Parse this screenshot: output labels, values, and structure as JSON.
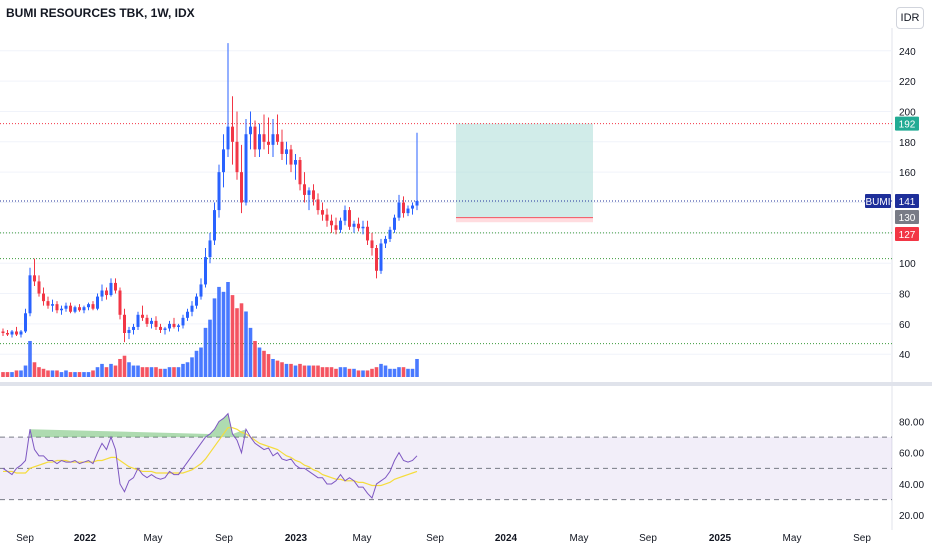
{
  "header": {
    "title": "BUMI RESOURCES TBK, 1W, IDX",
    "currency": "IDR"
  },
  "colors": {
    "up": "#2962ff",
    "down": "#f23645",
    "rsi": "#7e57c2",
    "rsi_ma": "#f5dc3c",
    "target_zone": "#b2dfdb",
    "stop_zone": "#ffcdd2",
    "target_line": "#f23645",
    "price_line": "#1e2f9a",
    "support_line": "#3a9a3a"
  },
  "chart_data": [
    {
      "type": "candlestick",
      "title": "BUMI RESOURCES TBK, 1W, IDX",
      "ylim": [
        25,
        255
      ],
      "yticks": [
        40,
        60,
        80,
        100,
        120,
        140,
        160,
        180,
        200,
        220,
        240
      ],
      "x_labels": [
        "Sep",
        "2022",
        "May",
        "Sep",
        "2023",
        "May",
        "Sep",
        "2024",
        "May",
        "Sep",
        "2025",
        "May",
        "Sep"
      ],
      "candles": [
        {
          "o": 55,
          "h": 57,
          "l": 52,
          "c": 54
        },
        {
          "o": 54,
          "h": 56,
          "l": 52,
          "c": 53
        },
        {
          "o": 53,
          "h": 56,
          "l": 51,
          "c": 55
        },
        {
          "o": 55,
          "h": 58,
          "l": 52,
          "c": 53
        },
        {
          "o": 53,
          "h": 56,
          "l": 51,
          "c": 55
        },
        {
          "o": 55,
          "h": 70,
          "l": 54,
          "c": 67
        },
        {
          "o": 67,
          "h": 97,
          "l": 65,
          "c": 92
        },
        {
          "o": 92,
          "h": 103,
          "l": 85,
          "c": 88
        },
        {
          "o": 88,
          "h": 92,
          "l": 78,
          "c": 80
        },
        {
          "o": 80,
          "h": 84,
          "l": 72,
          "c": 75
        },
        {
          "o": 75,
          "h": 78,
          "l": 70,
          "c": 72
        },
        {
          "o": 72,
          "h": 76,
          "l": 68,
          "c": 73
        },
        {
          "o": 73,
          "h": 75,
          "l": 67,
          "c": 69
        },
        {
          "o": 69,
          "h": 72,
          "l": 66,
          "c": 70
        },
        {
          "o": 70,
          "h": 74,
          "l": 68,
          "c": 72
        },
        {
          "o": 72,
          "h": 74,
          "l": 67,
          "c": 68
        },
        {
          "o": 68,
          "h": 72,
          "l": 67,
          "c": 71
        },
        {
          "o": 71,
          "h": 73,
          "l": 68,
          "c": 69
        },
        {
          "o": 69,
          "h": 72,
          "l": 67,
          "c": 71
        },
        {
          "o": 71,
          "h": 74,
          "l": 69,
          "c": 73
        },
        {
          "o": 73,
          "h": 75,
          "l": 69,
          "c": 70
        },
        {
          "o": 70,
          "h": 80,
          "l": 69,
          "c": 78
        },
        {
          "o": 78,
          "h": 86,
          "l": 75,
          "c": 82
        },
        {
          "o": 82,
          "h": 84,
          "l": 76,
          "c": 79
        },
        {
          "o": 79,
          "h": 90,
          "l": 78,
          "c": 87
        },
        {
          "o": 87,
          "h": 90,
          "l": 80,
          "c": 82
        },
        {
          "o": 82,
          "h": 84,
          "l": 63,
          "c": 66
        },
        {
          "o": 66,
          "h": 70,
          "l": 48,
          "c": 54
        },
        {
          "o": 54,
          "h": 58,
          "l": 50,
          "c": 56
        },
        {
          "o": 56,
          "h": 60,
          "l": 53,
          "c": 58
        },
        {
          "o": 58,
          "h": 68,
          "l": 56,
          "c": 66
        },
        {
          "o": 66,
          "h": 72,
          "l": 62,
          "c": 64
        },
        {
          "o": 64,
          "h": 66,
          "l": 58,
          "c": 60
        },
        {
          "o": 60,
          "h": 64,
          "l": 57,
          "c": 62
        },
        {
          "o": 62,
          "h": 65,
          "l": 56,
          "c": 58
        },
        {
          "o": 58,
          "h": 60,
          "l": 54,
          "c": 56
        },
        {
          "o": 56,
          "h": 58,
          "l": 53,
          "c": 57
        },
        {
          "o": 57,
          "h": 62,
          "l": 55,
          "c": 60
        },
        {
          "o": 60,
          "h": 64,
          "l": 57,
          "c": 58
        },
        {
          "o": 58,
          "h": 60,
          "l": 55,
          "c": 59
        },
        {
          "o": 59,
          "h": 66,
          "l": 57,
          "c": 64
        },
        {
          "o": 64,
          "h": 70,
          "l": 62,
          "c": 68
        },
        {
          "o": 68,
          "h": 75,
          "l": 65,
          "c": 72
        },
        {
          "o": 72,
          "h": 80,
          "l": 70,
          "c": 78
        },
        {
          "o": 78,
          "h": 90,
          "l": 76,
          "c": 86
        },
        {
          "o": 86,
          "h": 110,
          "l": 84,
          "c": 104
        },
        {
          "o": 104,
          "h": 120,
          "l": 100,
          "c": 115
        },
        {
          "o": 115,
          "h": 140,
          "l": 112,
          "c": 135
        },
        {
          "o": 135,
          "h": 165,
          "l": 130,
          "c": 160
        },
        {
          "o": 160,
          "h": 185,
          "l": 150,
          "c": 175
        },
        {
          "o": 175,
          "h": 245,
          "l": 170,
          "c": 190
        },
        {
          "o": 190,
          "h": 210,
          "l": 165,
          "c": 180
        },
        {
          "o": 180,
          "h": 200,
          "l": 155,
          "c": 160
        },
        {
          "o": 160,
          "h": 178,
          "l": 133,
          "c": 140
        },
        {
          "o": 140,
          "h": 195,
          "l": 138,
          "c": 185
        },
        {
          "o": 185,
          "h": 200,
          "l": 175,
          "c": 190
        },
        {
          "o": 190,
          "h": 194,
          "l": 170,
          "c": 175
        },
        {
          "o": 175,
          "h": 192,
          "l": 170,
          "c": 185
        },
        {
          "o": 185,
          "h": 198,
          "l": 175,
          "c": 180
        },
        {
          "o": 180,
          "h": 196,
          "l": 172,
          "c": 178
        },
        {
          "o": 178,
          "h": 195,
          "l": 170,
          "c": 185
        },
        {
          "o": 185,
          "h": 198,
          "l": 178,
          "c": 180
        },
        {
          "o": 180,
          "h": 188,
          "l": 168,
          "c": 172
        },
        {
          "o": 172,
          "h": 180,
          "l": 165,
          "c": 175
        },
        {
          "o": 175,
          "h": 178,
          "l": 160,
          "c": 165
        },
        {
          "o": 165,
          "h": 172,
          "l": 155,
          "c": 168
        },
        {
          "o": 168,
          "h": 170,
          "l": 148,
          "c": 152
        },
        {
          "o": 152,
          "h": 160,
          "l": 140,
          "c": 145
        },
        {
          "o": 145,
          "h": 150,
          "l": 135,
          "c": 148
        },
        {
          "o": 148,
          "h": 152,
          "l": 138,
          "c": 142
        },
        {
          "o": 142,
          "h": 146,
          "l": 132,
          "c": 135
        },
        {
          "o": 135,
          "h": 140,
          "l": 128,
          "c": 132
        },
        {
          "o": 132,
          "h": 136,
          "l": 124,
          "c": 128
        },
        {
          "o": 128,
          "h": 132,
          "l": 120,
          "c": 125
        },
        {
          "o": 125,
          "h": 130,
          "l": 119,
          "c": 122
        },
        {
          "o": 122,
          "h": 130,
          "l": 120,
          "c": 128
        },
        {
          "o": 128,
          "h": 138,
          "l": 125,
          "c": 135
        },
        {
          "o": 135,
          "h": 137,
          "l": 122,
          "c": 124
        },
        {
          "o": 124,
          "h": 128,
          "l": 120,
          "c": 126
        },
        {
          "o": 126,
          "h": 130,
          "l": 121,
          "c": 123
        },
        {
          "o": 123,
          "h": 128,
          "l": 119,
          "c": 124
        },
        {
          "o": 124,
          "h": 128,
          "l": 112,
          "c": 115
        },
        {
          "o": 115,
          "h": 120,
          "l": 105,
          "c": 110
        },
        {
          "o": 110,
          "h": 112,
          "l": 90,
          "c": 95
        },
        {
          "o": 95,
          "h": 116,
          "l": 93,
          "c": 113
        },
        {
          "o": 113,
          "h": 118,
          "l": 110,
          "c": 116
        },
        {
          "o": 116,
          "h": 124,
          "l": 114,
          "c": 122
        },
        {
          "o": 122,
          "h": 132,
          "l": 120,
          "c": 130
        },
        {
          "o": 130,
          "h": 145,
          "l": 128,
          "c": 140
        },
        {
          "o": 140,
          "h": 144,
          "l": 130,
          "c": 133
        },
        {
          "o": 133,
          "h": 138,
          "l": 131,
          "c": 136
        },
        {
          "o": 136,
          "h": 140,
          "l": 132,
          "c": 138
        },
        {
          "o": 138,
          "h": 186,
          "l": 135,
          "c": 141
        }
      ],
      "volume": [
        3,
        3,
        3,
        4,
        4,
        7,
        22,
        9,
        6,
        5,
        4,
        4,
        4,
        3,
        4,
        3,
        3,
        3,
        3,
        3,
        4,
        6,
        8,
        6,
        8,
        7,
        11,
        13,
        9,
        7,
        7,
        6,
        6,
        6,
        6,
        5,
        5,
        6,
        6,
        6,
        8,
        9,
        12,
        16,
        18,
        30,
        35,
        48,
        55,
        52,
        58,
        50,
        42,
        45,
        40,
        30,
        22,
        18,
        16,
        14,
        11,
        10,
        9,
        8,
        8,
        7,
        8,
        7,
        7,
        7,
        7,
        6,
        6,
        6,
        5,
        6,
        6,
        5,
        5,
        4,
        4,
        4,
        5,
        6,
        8,
        7,
        5,
        5,
        6,
        6,
        5,
        5,
        11
      ],
      "price_levels": {
        "target": 192,
        "current": 141,
        "entry": 130,
        "stop": 127,
        "support_1": 120,
        "support_2": 103,
        "support_3": 47
      }
    },
    {
      "type": "line",
      "title": "RSI",
      "ylim": [
        15,
        95
      ],
      "yticks": [
        "20.00",
        "40.00",
        "60.00",
        "80.00"
      ],
      "bands": [
        30,
        50,
        70
      ],
      "series": [
        {
          "values": [
            50,
            48,
            46,
            50,
            52,
            55,
            75,
            62,
            58,
            58,
            55,
            55,
            53,
            55,
            54,
            54,
            55,
            53,
            54,
            55,
            53,
            60,
            66,
            62,
            70,
            62,
            40,
            35,
            42,
            44,
            50,
            46,
            44,
            46,
            44,
            43,
            44,
            48,
            46,
            46,
            50,
            54,
            58,
            62,
            66,
            70,
            72,
            75,
            80,
            82,
            85,
            72,
            68,
            60,
            75,
            70,
            66,
            64,
            62,
            63,
            58,
            60,
            56,
            55,
            56,
            52,
            50,
            50,
            48,
            46,
            44,
            44,
            40,
            40,
            42,
            46,
            42,
            44,
            42,
            38,
            38,
            34,
            31,
            40,
            42,
            44,
            48,
            55,
            60,
            55,
            54,
            55,
            58
          ]
        },
        {
          "values": [
            48,
            48,
            48,
            47,
            47,
            47,
            50,
            51,
            52,
            53,
            54,
            54,
            55,
            55,
            55,
            54,
            54,
            54,
            54,
            54,
            54,
            55,
            55,
            56,
            57,
            57,
            55,
            53,
            51,
            50,
            49,
            48,
            48,
            48,
            47,
            47,
            47,
            47,
            47,
            47,
            47,
            48,
            49,
            51,
            53,
            56,
            60,
            64,
            68,
            72,
            76,
            76,
            75,
            73,
            72,
            70,
            68,
            66,
            65,
            64,
            63,
            62,
            60,
            58,
            57,
            55,
            54,
            52,
            51,
            49,
            48,
            46,
            45,
            44,
            43,
            43,
            42,
            42,
            42,
            41,
            41,
            40,
            39,
            39,
            39,
            40,
            41,
            43,
            44,
            45,
            46,
            47,
            48
          ]
        }
      ]
    }
  ],
  "price_axis": {
    "target_label": "192",
    "current_label": "141",
    "symbol_label": "BUMI",
    "entry_label": "130",
    "stop_label": "127"
  }
}
